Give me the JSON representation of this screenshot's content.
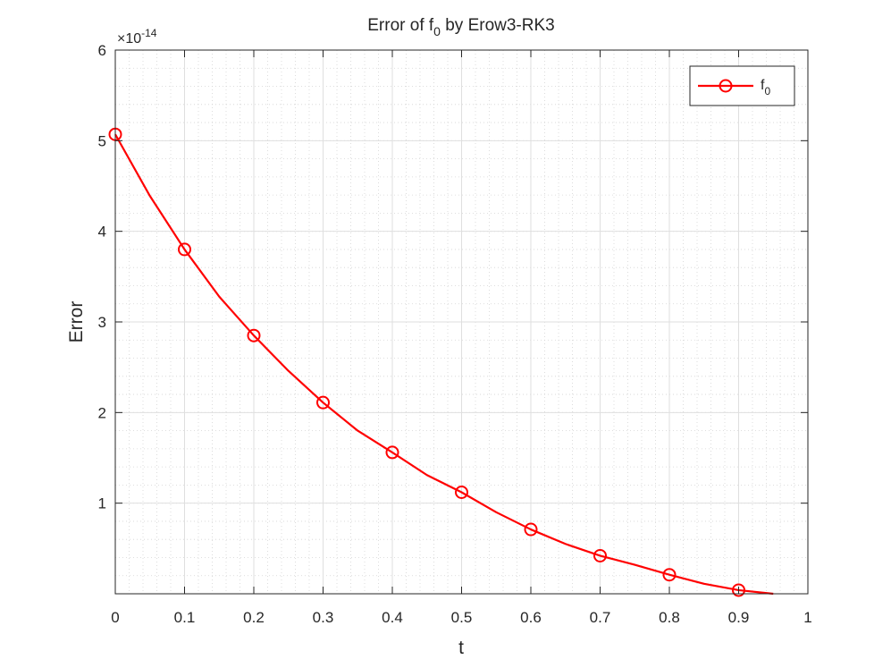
{
  "chart_data": {
    "type": "line",
    "title": {
      "main": "Error of f",
      "sub": "0",
      "rest": " by Erow3-RK3"
    },
    "xlabel": "t",
    "ylabel": "Error",
    "exponent_label": {
      "base": "×10",
      "power": "-14"
    },
    "xlim": [
      0,
      1
    ],
    "ylim": [
      0,
      6
    ],
    "x_ticks": [
      0,
      0.1,
      0.2,
      0.3,
      0.4,
      0.5,
      0.6,
      0.7,
      0.8,
      0.9,
      1
    ],
    "x_tick_labels": [
      "0",
      "0.1",
      "0.2",
      "0.3",
      "0.4",
      "0.5",
      "0.6",
      "0.7",
      "0.8",
      "0.9",
      "1"
    ],
    "y_ticks": [
      1,
      2,
      3,
      4,
      5,
      6
    ],
    "y_tick_labels": [
      "1",
      "2",
      "3",
      "4",
      "5",
      "6"
    ],
    "grid": true,
    "minor_grid": true,
    "legend_position": "top-right",
    "series": [
      {
        "name": {
          "main": "f",
          "sub": "0"
        },
        "color": "#ff0000",
        "marker": "circle",
        "x": [
          0,
          0.05,
          0.1,
          0.15,
          0.2,
          0.25,
          0.3,
          0.35,
          0.4,
          0.45,
          0.5,
          0.55,
          0.6,
          0.65,
          0.7,
          0.75,
          0.8,
          0.85,
          0.9,
          0.95
        ],
        "values": [
          5.07,
          4.39,
          3.8,
          3.28,
          2.85,
          2.46,
          2.11,
          1.8,
          1.56,
          1.31,
          1.12,
          0.9,
          0.71,
          0.55,
          0.42,
          0.32,
          0.21,
          0.11,
          0.04,
          0.0
        ],
        "marker_x": [
          0,
          0.1,
          0.2,
          0.3,
          0.4,
          0.5,
          0.6,
          0.7,
          0.8,
          0.9
        ],
        "marker_values": [
          5.07,
          3.8,
          2.85,
          2.11,
          1.56,
          1.12,
          0.71,
          0.42,
          0.21,
          0.04
        ]
      }
    ]
  }
}
